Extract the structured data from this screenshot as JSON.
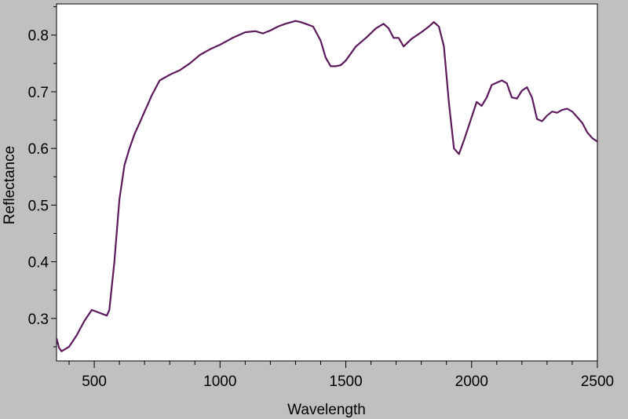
{
  "chart_data": {
    "type": "line",
    "title": "",
    "xlabel": "Wavelength",
    "ylabel": "Reflectance",
    "xlim": [
      350,
      2500
    ],
    "ylim": [
      0.225,
      0.855
    ],
    "x_ticks": [
      500,
      1000,
      1500,
      2000,
      2500
    ],
    "y_ticks": [
      0.3,
      0.4,
      0.5,
      0.6,
      0.7,
      0.8
    ],
    "x_tick_labels": [
      "500",
      "1000",
      "1500",
      "2000",
      "2500"
    ],
    "y_tick_labels": [
      "0.3",
      "0.4",
      "0.5",
      "0.6",
      "0.7",
      "0.8"
    ],
    "grid": false,
    "legend": "none",
    "background": "#c0c0c0",
    "plot_background": "#ffffff",
    "series": [
      {
        "color": "#5c1a5c",
        "x": [
          350,
          360,
          370,
          400,
          430,
          460,
          490,
          520,
          550,
          560,
          580,
          600,
          620,
          640,
          660,
          680,
          700,
          730,
          760,
          800,
          840,
          880,
          920,
          960,
          1000,
          1050,
          1100,
          1140,
          1170,
          1200,
          1230,
          1260,
          1300,
          1320,
          1340,
          1370,
          1400,
          1420,
          1440,
          1460,
          1480,
          1500,
          1540,
          1580,
          1620,
          1650,
          1670,
          1690,
          1710,
          1730,
          1760,
          1800,
          1830,
          1850,
          1870,
          1890,
          1910,
          1930,
          1950,
          1970,
          2000,
          2020,
          2040,
          2060,
          2080,
          2100,
          2120,
          2140,
          2160,
          2180,
          2200,
          2220,
          2240,
          2260,
          2280,
          2300,
          2320,
          2340,
          2360,
          2380,
          2400,
          2420,
          2440,
          2460,
          2480,
          2500
        ],
        "y": [
          0.265,
          0.248,
          0.242,
          0.25,
          0.27,
          0.295,
          0.315,
          0.31,
          0.305,
          0.315,
          0.4,
          0.51,
          0.57,
          0.6,
          0.625,
          0.645,
          0.665,
          0.695,
          0.72,
          0.73,
          0.738,
          0.75,
          0.765,
          0.775,
          0.783,
          0.795,
          0.805,
          0.807,
          0.803,
          0.808,
          0.815,
          0.82,
          0.825,
          0.823,
          0.82,
          0.815,
          0.79,
          0.76,
          0.745,
          0.745,
          0.747,
          0.755,
          0.78,
          0.795,
          0.812,
          0.82,
          0.812,
          0.795,
          0.795,
          0.78,
          0.793,
          0.805,
          0.815,
          0.823,
          0.815,
          0.78,
          0.68,
          0.6,
          0.59,
          0.615,
          0.655,
          0.682,
          0.675,
          0.69,
          0.712,
          0.716,
          0.72,
          0.715,
          0.69,
          0.688,
          0.702,
          0.708,
          0.69,
          0.652,
          0.648,
          0.658,
          0.665,
          0.663,
          0.668,
          0.67,
          0.665,
          0.655,
          0.645,
          0.628,
          0.618,
          0.612
        ]
      }
    ]
  }
}
